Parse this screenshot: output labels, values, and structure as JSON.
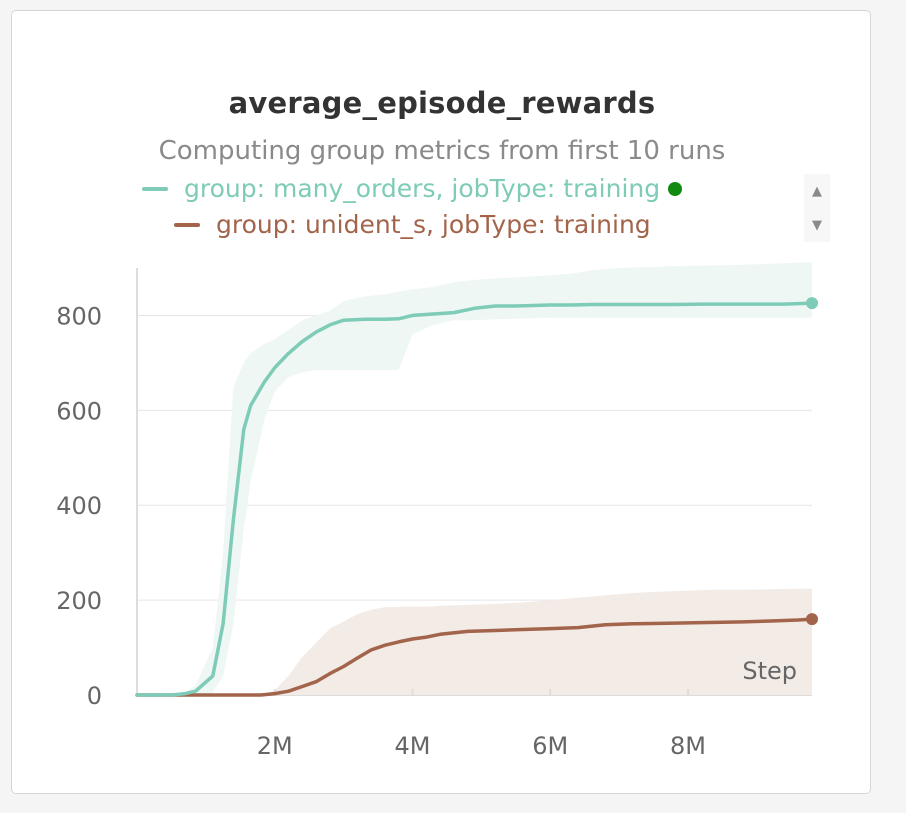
{
  "panel": {
    "title": "average_episode_rewards",
    "subtitle": "Computing group metrics from first 10 runs",
    "legend_scroll_up": "▲",
    "legend_scroll_down": "▼"
  },
  "colors": {
    "many_orders": "#7ecbb7",
    "many_orders_band": "#eef7f4",
    "unident_s": "#a3644c",
    "unident_s_band": "#f3ebe6",
    "grid": "#e6e6e6",
    "axis": "#dddddd",
    "legend_dot": "#118a11"
  },
  "chart_data": {
    "type": "line",
    "title": "average_episode_rewards",
    "subtitle": "Computing group metrics from first 10 runs",
    "xlabel": "Step",
    "ylabel": "",
    "xlim": [
      0,
      9800000
    ],
    "ylim": [
      0,
      900
    ],
    "x_ticks": [
      {
        "value": 2000000,
        "label": "2M"
      },
      {
        "value": 4000000,
        "label": "4M"
      },
      {
        "value": 6000000,
        "label": "6M"
      },
      {
        "value": 8000000,
        "label": "8M"
      }
    ],
    "y_ticks": [
      {
        "value": 0,
        "label": "0"
      },
      {
        "value": 200,
        "label": "200"
      },
      {
        "value": 400,
        "label": "400"
      },
      {
        "value": 600,
        "label": "600"
      },
      {
        "value": 800,
        "label": "800"
      }
    ],
    "grid": true,
    "legend_position": "top",
    "series": [
      {
        "name": "group: many_orders, jobType: training",
        "key": "many_orders",
        "x": [
          0,
          500000,
          700000,
          850000,
          1100000,
          1250000,
          1400000,
          1550000,
          1650000,
          1850000,
          2000000,
          2200000,
          2400000,
          2600000,
          2800000,
          3000000,
          3300000,
          3600000,
          3800000,
          4000000,
          4300000,
          4600000,
          4900000,
          5200000,
          5500000,
          6000000,
          6300000,
          6600000,
          7000000,
          7400000,
          7800000,
          8200000,
          8600000,
          9000000,
          9400000,
          9800000
        ],
        "y": [
          0,
          0,
          3,
          8,
          40,
          150,
          370,
          560,
          610,
          660,
          690,
          720,
          745,
          765,
          780,
          790,
          792,
          792,
          793,
          800,
          803,
          806,
          815,
          820,
          820,
          822,
          822,
          823,
          823,
          823,
          823,
          824,
          824,
          824,
          824,
          826
        ],
        "band_upper": [
          0,
          0,
          5,
          20,
          100,
          300,
          650,
          700,
          720,
          740,
          750,
          770,
          790,
          800,
          810,
          830,
          840,
          845,
          850,
          855,
          860,
          870,
          875,
          878,
          880,
          885,
          888,
          895,
          900,
          902,
          904,
          905,
          906,
          908,
          910,
          912
        ],
        "band_lower": [
          0,
          0,
          0,
          0,
          5,
          40,
          150,
          350,
          450,
          580,
          640,
          670,
          680,
          685,
          685,
          685,
          685,
          685,
          685,
          760,
          780,
          790,
          790,
          792,
          793,
          795,
          795,
          795,
          795,
          795,
          795,
          795,
          795,
          795,
          795,
          795
        ]
      },
      {
        "name": "group: unident_s, jobType: training",
        "key": "unident_s",
        "x": [
          0,
          500000,
          1000000,
          1500000,
          1800000,
          2000000,
          2200000,
          2400000,
          2600000,
          2800000,
          3000000,
          3200000,
          3400000,
          3600000,
          3800000,
          4000000,
          4200000,
          4400000,
          4800000,
          5200000,
          5600000,
          6000000,
          6400000,
          6800000,
          7200000,
          7600000,
          8000000,
          8400000,
          8800000,
          9200000,
          9600000,
          9800000
        ],
        "y": [
          0,
          0,
          0,
          0,
          0,
          3,
          8,
          18,
          28,
          45,
          60,
          78,
          95,
          105,
          112,
          118,
          122,
          128,
          134,
          136,
          138,
          140,
          142,
          148,
          150,
          151,
          152,
          153,
          154,
          156,
          158,
          160
        ],
        "band_upper": [
          0,
          0,
          0,
          0,
          0,
          10,
          40,
          80,
          110,
          140,
          155,
          170,
          180,
          185,
          186,
          186,
          186,
          188,
          190,
          192,
          195,
          200,
          205,
          210,
          215,
          218,
          220,
          222,
          222,
          223,
          224,
          224
        ],
        "band_lower": [
          0,
          0,
          0,
          0,
          0,
          0,
          0,
          0,
          0,
          0,
          0,
          0,
          0,
          0,
          0,
          0,
          0,
          0,
          0,
          0,
          0,
          0,
          0,
          0,
          0,
          0,
          0,
          0,
          0,
          0,
          0,
          0
        ]
      }
    ]
  }
}
